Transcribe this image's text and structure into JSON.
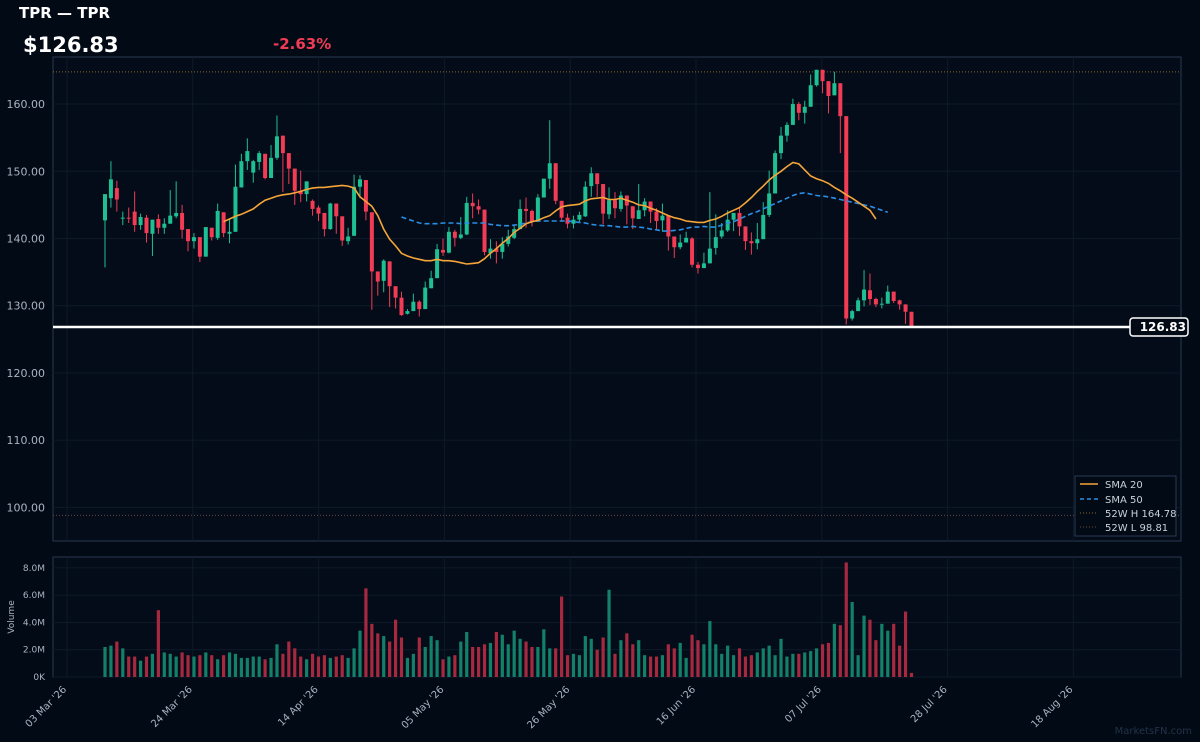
{
  "header": {
    "title": "TPR — TPR",
    "price": "$126.83",
    "change": "-2.63%"
  },
  "watermark": "MarketsFN.com",
  "colors": {
    "background": "#020a16",
    "up": "#1fbf94",
    "down": "#f23b55",
    "sma20": "#f5a53a",
    "sma50": "#2b8fe6",
    "grid": "#0e1a2a"
  },
  "chart_data": {
    "type": "candlestick",
    "price_axis": {
      "ticks": [
        "100.00",
        "110.00",
        "120.00",
        "130.00",
        "140.00",
        "150.00",
        "160.00"
      ],
      "ylim": [
        95,
        167
      ]
    },
    "volume_axis": {
      "label": "Volume",
      "ticks": [
        "0K",
        "2.0M",
        "4.0M",
        "6.0M",
        "8.0M"
      ],
      "ylim": [
        0,
        8.8
      ]
    },
    "x_ticks": [
      "03 Mar '26",
      "24 Mar '26",
      "14 Apr '26",
      "05 May '26",
      "26 May '26",
      "16 Jun '26",
      "07 Jul '26",
      "28 Jul '26",
      "18 Aug '26"
    ],
    "last_price_label": "126.83",
    "last_price": 126.83,
    "high_52w": 164.78,
    "low_52w": 98.81,
    "legend": [
      "SMA 20",
      "SMA 50",
      "52W H 164.78",
      "52W L 98.81"
    ],
    "candles": [
      [
        142.7,
        146.6,
        137.8,
        135.7,
        2.2
      ],
      [
        146.0,
        148.8,
        151.5,
        144.6,
        2.3
      ],
      [
        147.5,
        145.8,
        148.6,
        144.0,
        2.6
      ],
      [
        143.0,
        143.1,
        144.0,
        142.0,
        2.1
      ],
      [
        143.1,
        143.0,
        144.6,
        142.3,
        1.5
      ],
      [
        144.0,
        142.0,
        147.0,
        141.0,
        1.5
      ],
      [
        142.0,
        143.2,
        143.7,
        141.3,
        1.2
      ],
      [
        143.1,
        140.8,
        143.5,
        139.4,
        1.5
      ],
      [
        140.7,
        142.8,
        141.5,
        137.4,
        1.7
      ],
      [
        142.9,
        141.6,
        143.6,
        140.7,
        4.9
      ],
      [
        141.6,
        142.2,
        143.0,
        140.7,
        1.8
      ],
      [
        142.2,
        143.4,
        147.2,
        143.6,
        1.7
      ],
      [
        143.3,
        143.8,
        148.5,
        143.0,
        1.5
      ],
      [
        143.8,
        141.3,
        145.0,
        140.0,
        1.8
      ],
      [
        141.4,
        139.6,
        140.4,
        138.1,
        1.6
      ],
      [
        139.6,
        140.2,
        140.8,
        138.5,
        1.5
      ],
      [
        140.2,
        137.3,
        138.9,
        136.5,
        1.6
      ],
      [
        137.3,
        141.7,
        141.4,
        138.1,
        1.8
      ],
      [
        141.6,
        140.2,
        141.1,
        139.7,
        1.6
      ],
      [
        140.1,
        144.1,
        145.2,
        139.8,
        1.3
      ],
      [
        143.9,
        140.8,
        143.4,
        140.2,
        1.6
      ],
      [
        140.7,
        141.0,
        143.0,
        139.3,
        1.8
      ],
      [
        141.0,
        147.7,
        151.0,
        144.2,
        1.7
      ],
      [
        147.6,
        151.5,
        152.6,
        148.8,
        1.4
      ],
      [
        151.5,
        153.0,
        154.9,
        150.2,
        1.4
      ],
      [
        149.8,
        151.5,
        151.7,
        148.3,
        1.5
      ],
      [
        151.4,
        152.7,
        153.0,
        150.2,
        1.5
      ],
      [
        152.6,
        149.0,
        152.0,
        148.8,
        1.3
      ],
      [
        149.0,
        152.0,
        153.9,
        150.2,
        1.4
      ],
      [
        152.0,
        155.2,
        158.3,
        151.7,
        2.4
      ],
      [
        155.3,
        152.7,
        153.2,
        146.9,
        1.7
      ],
      [
        152.7,
        150.4,
        152.6,
        148.1,
        2.6
      ],
      [
        150.4,
        147.1,
        148.3,
        145.0,
        2.1
      ],
      [
        147.1,
        146.6,
        150.1,
        145.4,
        1.5
      ],
      [
        146.6,
        148.5,
        148.1,
        145.5,
        1.3
      ],
      [
        145.6,
        144.4,
        145.8,
        143.4,
        1.7
      ],
      [
        144.6,
        143.7,
        144.9,
        142.6,
        1.5
      ],
      [
        143.8,
        141.4,
        143.2,
        140.3,
        1.6
      ],
      [
        141.4,
        145.2,
        145.3,
        141.3,
        1.4
      ],
      [
        145.2,
        143.3,
        144.2,
        140.7,
        1.5
      ],
      [
        143.3,
        139.7,
        141.6,
        138.9,
        1.6
      ],
      [
        139.6,
        140.3,
        141.6,
        139.1,
        1.4
      ],
      [
        140.4,
        147.7,
        149.5,
        144.2,
        2.1
      ],
      [
        147.7,
        148.8,
        149.4,
        146.0,
        3.4
      ],
      [
        148.7,
        144.0,
        146.9,
        142.7,
        6.5
      ],
      [
        143.9,
        135.1,
        135.6,
        129.4,
        3.9
      ],
      [
        135.1,
        133.6,
        133.9,
        131.5,
        3.2
      ],
      [
        133.7,
        136.7,
        136.9,
        132.0,
        3.0
      ],
      [
        136.6,
        132.9,
        133.1,
        129.8,
        2.6
      ],
      [
        132.9,
        131.2,
        131.7,
        129.6,
        4.2
      ],
      [
        131.2,
        128.6,
        132.1,
        128.5,
        2.9
      ],
      [
        128.8,
        129.2,
        129.5,
        128.7,
        1.4
      ],
      [
        129.2,
        130.6,
        131.8,
        129.3,
        1.7
      ],
      [
        130.6,
        129.5,
        130.8,
        128.4,
        2.9
      ],
      [
        129.5,
        132.7,
        133.6,
        130.7,
        2.2
      ],
      [
        132.6,
        134.1,
        135.2,
        133.2,
        3.0
      ],
      [
        134.1,
        138.4,
        139.2,
        134.6,
        2.7
      ],
      [
        138.3,
        137.9,
        140.0,
        137.4,
        1.3
      ],
      [
        137.9,
        141.0,
        141.7,
        137.8,
        1.5
      ],
      [
        141.0,
        140.1,
        141.3,
        138.8,
        1.6
      ],
      [
        140.1,
        140.6,
        143.2,
        139.9,
        2.6
      ],
      [
        140.6,
        145.3,
        146.2,
        140.5,
        3.3
      ],
      [
        145.3,
        144.8,
        146.7,
        143.0,
        2.2
      ],
      [
        144.8,
        144.3,
        145.8,
        143.6,
        2.2
      ],
      [
        144.3,
        138.0,
        143.6,
        137.5,
        2.4
      ],
      [
        137.8,
        138.5,
        139.9,
        137.0,
        2.5
      ],
      [
        138.5,
        138.0,
        139.6,
        136.3,
        3.3
      ],
      [
        138.0,
        139.2,
        140.2,
        137.0,
        3.1
      ],
      [
        139.2,
        140.3,
        141.3,
        138.8,
        2.4
      ],
      [
        140.1,
        141.4,
        141.9,
        139.9,
        3.4
      ],
      [
        141.4,
        144.4,
        145.8,
        141.6,
        2.8
      ],
      [
        144.4,
        144.1,
        146.1,
        141.6,
        2.6
      ],
      [
        144.1,
        142.5,
        144.3,
        141.8,
        2.2
      ],
      [
        142.5,
        146.1,
        146.6,
        142.5,
        2.2
      ],
      [
        146.1,
        148.9,
        148.6,
        147.8,
        3.5
      ],
      [
        148.9,
        151.2,
        157.6,
        147.4,
        2.1
      ],
      [
        151.2,
        145.6,
        146.9,
        145.1,
        2.1
      ],
      [
        145.6,
        143.1,
        144.9,
        142.5,
        5.9
      ],
      [
        143.1,
        142.2,
        143.7,
        141.5,
        1.6
      ],
      [
        142.2,
        142.8,
        143.4,
        141.5,
        1.7
      ],
      [
        142.8,
        143.5,
        144.0,
        142.4,
        1.6
      ],
      [
        143.3,
        147.7,
        148.5,
        143.2,
        3.0
      ],
      [
        147.8,
        149.7,
        150.6,
        146.2,
        2.8
      ],
      [
        149.7,
        148.1,
        149.5,
        146.2,
        2.0
      ],
      [
        148.1,
        143.7,
        145.1,
        142.1,
        2.9
      ],
      [
        143.6,
        145.7,
        147.6,
        142.9,
        6.4
      ],
      [
        145.7,
        144.5,
        146.9,
        143.0,
        1.7
      ],
      [
        144.4,
        146.4,
        147.0,
        144.0,
        2.7
      ],
      [
        146.4,
        144.9,
        146.4,
        142.1,
        3.2
      ],
      [
        144.8,
        143.0,
        144.0,
        141.4,
        2.4
      ],
      [
        142.9,
        144.2,
        148.1,
        143.2,
        2.7
      ],
      [
        144.2,
        145.5,
        146.0,
        143.3,
        1.6
      ],
      [
        145.5,
        144.0,
        144.7,
        142.3,
        1.5
      ],
      [
        144.0,
        142.6,
        144.5,
        141.4,
        1.5
      ],
      [
        142.7,
        143.4,
        145.2,
        141.0,
        1.6
      ],
      [
        143.4,
        140.3,
        142.7,
        138.2,
        2.4
      ],
      [
        140.3,
        138.7,
        139.1,
        137.1,
        2.1
      ],
      [
        138.7,
        139.4,
        140.6,
        138.4,
        2.5
      ],
      [
        139.4,
        140.1,
        141.0,
        139.5,
        1.4
      ],
      [
        140.0,
        136.1,
        140.2,
        135.7,
        3.1
      ],
      [
        136.1,
        135.6,
        136.5,
        134.8,
        2.7
      ],
      [
        135.6,
        136.3,
        137.9,
        135.7,
        2.4
      ],
      [
        136.3,
        138.5,
        146.9,
        137.7,
        4.1
      ],
      [
        138.6,
        140.2,
        143.6,
        137.6,
        2.4
      ],
      [
        140.3,
        141.2,
        142.3,
        140.0,
        1.7
      ],
      [
        141.2,
        142.8,
        144.2,
        141.0,
        2.3
      ],
      [
        142.8,
        143.8,
        143.5,
        141.1,
        1.6
      ],
      [
        143.8,
        141.8,
        144.7,
        140.4,
        2.1
      ],
      [
        141.8,
        139.6,
        140.6,
        138.3,
        1.5
      ],
      [
        139.6,
        139.3,
        140.9,
        137.6,
        1.6
      ],
      [
        139.3,
        139.9,
        142.3,
        138.4,
        1.8
      ],
      [
        139.9,
        143.5,
        145.4,
        141.0,
        2.1
      ],
      [
        143.5,
        146.7,
        150.1,
        143.2,
        2.3
      ],
      [
        146.7,
        152.7,
        153.1,
        148.1,
        1.6
      ],
      [
        152.7,
        155.3,
        156.6,
        151.8,
        2.8
      ],
      [
        155.3,
        156.9,
        157.3,
        154.4,
        1.5
      ],
      [
        156.9,
        160.0,
        160.8,
        158.6,
        1.7
      ],
      [
        160.0,
        158.7,
        160.3,
        157.6,
        1.7
      ],
      [
        158.7,
        159.6,
        160.5,
        157.1,
        1.8
      ],
      [
        159.6,
        162.8,
        164.4,
        161.4,
        1.9
      ],
      [
        162.8,
        165.1,
        164.7,
        162.6,
        2.1
      ],
      [
        165.1,
        163.4,
        164.6,
        161.6,
        2.4
      ],
      [
        163.4,
        161.2,
        161.3,
        158.6,
        2.5
      ],
      [
        161.3,
        163.1,
        164.8,
        161.3,
        3.9
      ],
      [
        163.1,
        158.2,
        161.4,
        152.7,
        3.8
      ],
      [
        158.2,
        128.1,
        135.8,
        127.2,
        8.4
      ],
      [
        128.1,
        129.2,
        129.4,
        127.8,
        5.5
      ],
      [
        129.2,
        130.8,
        131.2,
        129.4,
        1.6
      ],
      [
        130.8,
        132.4,
        135.3,
        129.9,
        4.5
      ],
      [
        132.3,
        131.0,
        134.8,
        130.1,
        4.2
      ],
      [
        131.0,
        130.2,
        131.2,
        129.8,
        2.7
      ],
      [
        130.2,
        130.3,
        131.2,
        129.6,
        3.9
      ],
      [
        130.3,
        132.1,
        133.0,
        131.3,
        3.4
      ],
      [
        132.1,
        130.7,
        131.9,
        130.4,
        3.9
      ],
      [
        130.8,
        130.2,
        130.9,
        129.4,
        2.3
      ],
      [
        130.2,
        129.1,
        129.4,
        127.3,
        4.8
      ],
      [
        129.1,
        126.83,
        128.9,
        126.8,
        0.3
      ]
    ],
    "sma20": [
      null,
      null,
      null,
      null,
      null,
      null,
      null,
      null,
      null,
      null,
      null,
      null,
      null,
      null,
      null,
      null,
      null,
      null,
      null,
      null,
      142.5,
      142.9,
      143.3,
      143.6,
      144.0,
      144.4,
      145.1,
      145.7,
      146.0,
      146.3,
      146.5,
      146.6,
      146.8,
      147.0,
      147.3,
      147.5,
      147.6,
      147.6,
      147.7,
      147.8,
      147.9,
      147.8,
      147.5,
      146.2,
      145.5,
      144.8,
      143.4,
      141.4,
      139.9,
      138.9,
      137.8,
      137.4,
      137.1,
      136.9,
      136.7,
      136.7,
      136.9,
      136.7,
      136.7,
      136.6,
      136.4,
      136.2,
      136.3,
      136.4,
      137.0,
      137.8,
      138.5,
      139.3,
      140.0,
      140.9,
      141.5,
      142.2,
      142.5,
      142.7,
      143.1,
      143.4,
      144.1,
      144.7,
      144.9,
      145.0,
      145.1,
      145.6,
      145.9,
      146.0,
      146.1,
      145.8,
      145.8,
      146.0,
      145.7,
      145.4,
      145.0,
      144.9,
      144.5,
      144.2,
      143.8,
      143.4,
      143.1,
      142.9,
      142.6,
      142.5,
      142.4,
      142.4,
      142.7,
      142.9,
      143.3,
      143.8,
      144.2,
      144.6,
      145.3,
      146.1,
      147.0,
      147.8,
      148.7,
      149.4,
      150.0,
      150.7,
      151.3,
      151.1,
      150.2,
      149.3,
      148.9,
      148.6,
      148.2,
      147.6,
      147.1,
      146.5,
      146.0,
      145.4,
      144.8,
      144.2,
      142.9
    ],
    "sma50": [
      null,
      null,
      null,
      null,
      null,
      null,
      null,
      null,
      null,
      null,
      null,
      null,
      null,
      null,
      null,
      null,
      null,
      null,
      null,
      null,
      null,
      null,
      null,
      null,
      null,
      null,
      null,
      null,
      null,
      null,
      null,
      null,
      null,
      null,
      null,
      null,
      null,
      null,
      null,
      null,
      null,
      null,
      null,
      null,
      null,
      null,
      null,
      null,
      null,
      null,
      143.2,
      142.9,
      142.6,
      142.3,
      142.2,
      142.2,
      142.2,
      142.3,
      142.3,
      142.3,
      142.2,
      142.3,
      142.3,
      142.3,
      142.3,
      142.1,
      142.0,
      141.9,
      141.9,
      142.0,
      142.1,
      142.3,
      142.5,
      142.6,
      142.6,
      142.6,
      142.6,
      142.6,
      142.6,
      142.5,
      142.4,
      142.3,
      142.1,
      142.0,
      141.9,
      141.9,
      141.8,
      141.7,
      141.7,
      141.8,
      141.7,
      141.6,
      141.4,
      141.3,
      141.1,
      141.1,
      141.2,
      141.3,
      141.5,
      141.7,
      141.7,
      141.8,
      141.7,
      141.7,
      142.0,
      142.3,
      142.5,
      142.9,
      143.3,
      143.7,
      144.0,
      144.4,
      144.8,
      145.2,
      145.6,
      146.0,
      146.4,
      146.7,
      146.8,
      146.6,
      146.4,
      146.3,
      146.2,
      146.0,
      145.8,
      145.6,
      145.4,
      145.2,
      145.0,
      144.8,
      144.5,
      144.2,
      143.9
    ]
  }
}
